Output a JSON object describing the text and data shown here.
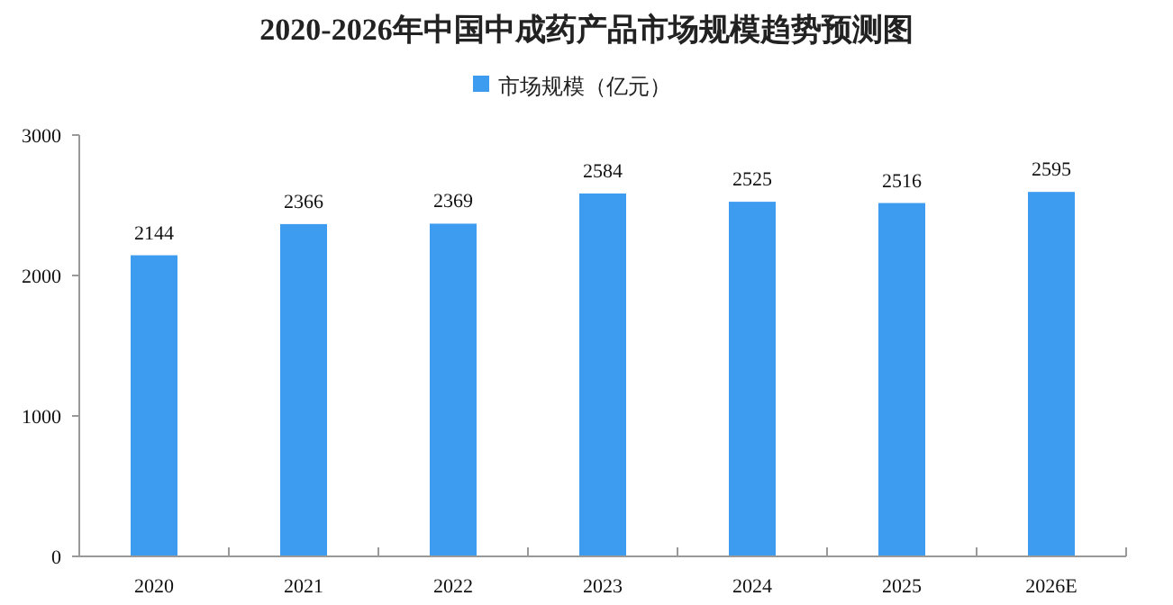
{
  "chart_data": {
    "type": "bar",
    "title": "2020-2026年中国中成药产品市场规模趋势预测图",
    "categories": [
      "2020",
      "2021",
      "2022",
      "2023",
      "2024",
      "2025",
      "2026E"
    ],
    "series": [
      {
        "name": "市场规模（亿元）",
        "color": "#3d9bf0",
        "values": [
          2144,
          2366,
          2369,
          2584,
          2525,
          2516,
          2595
        ]
      }
    ],
    "ylim": [
      0,
      3000
    ],
    "yticks": [
      0,
      1000,
      2000,
      3000
    ],
    "data_labels": true,
    "legend": "top",
    "grid": false
  }
}
